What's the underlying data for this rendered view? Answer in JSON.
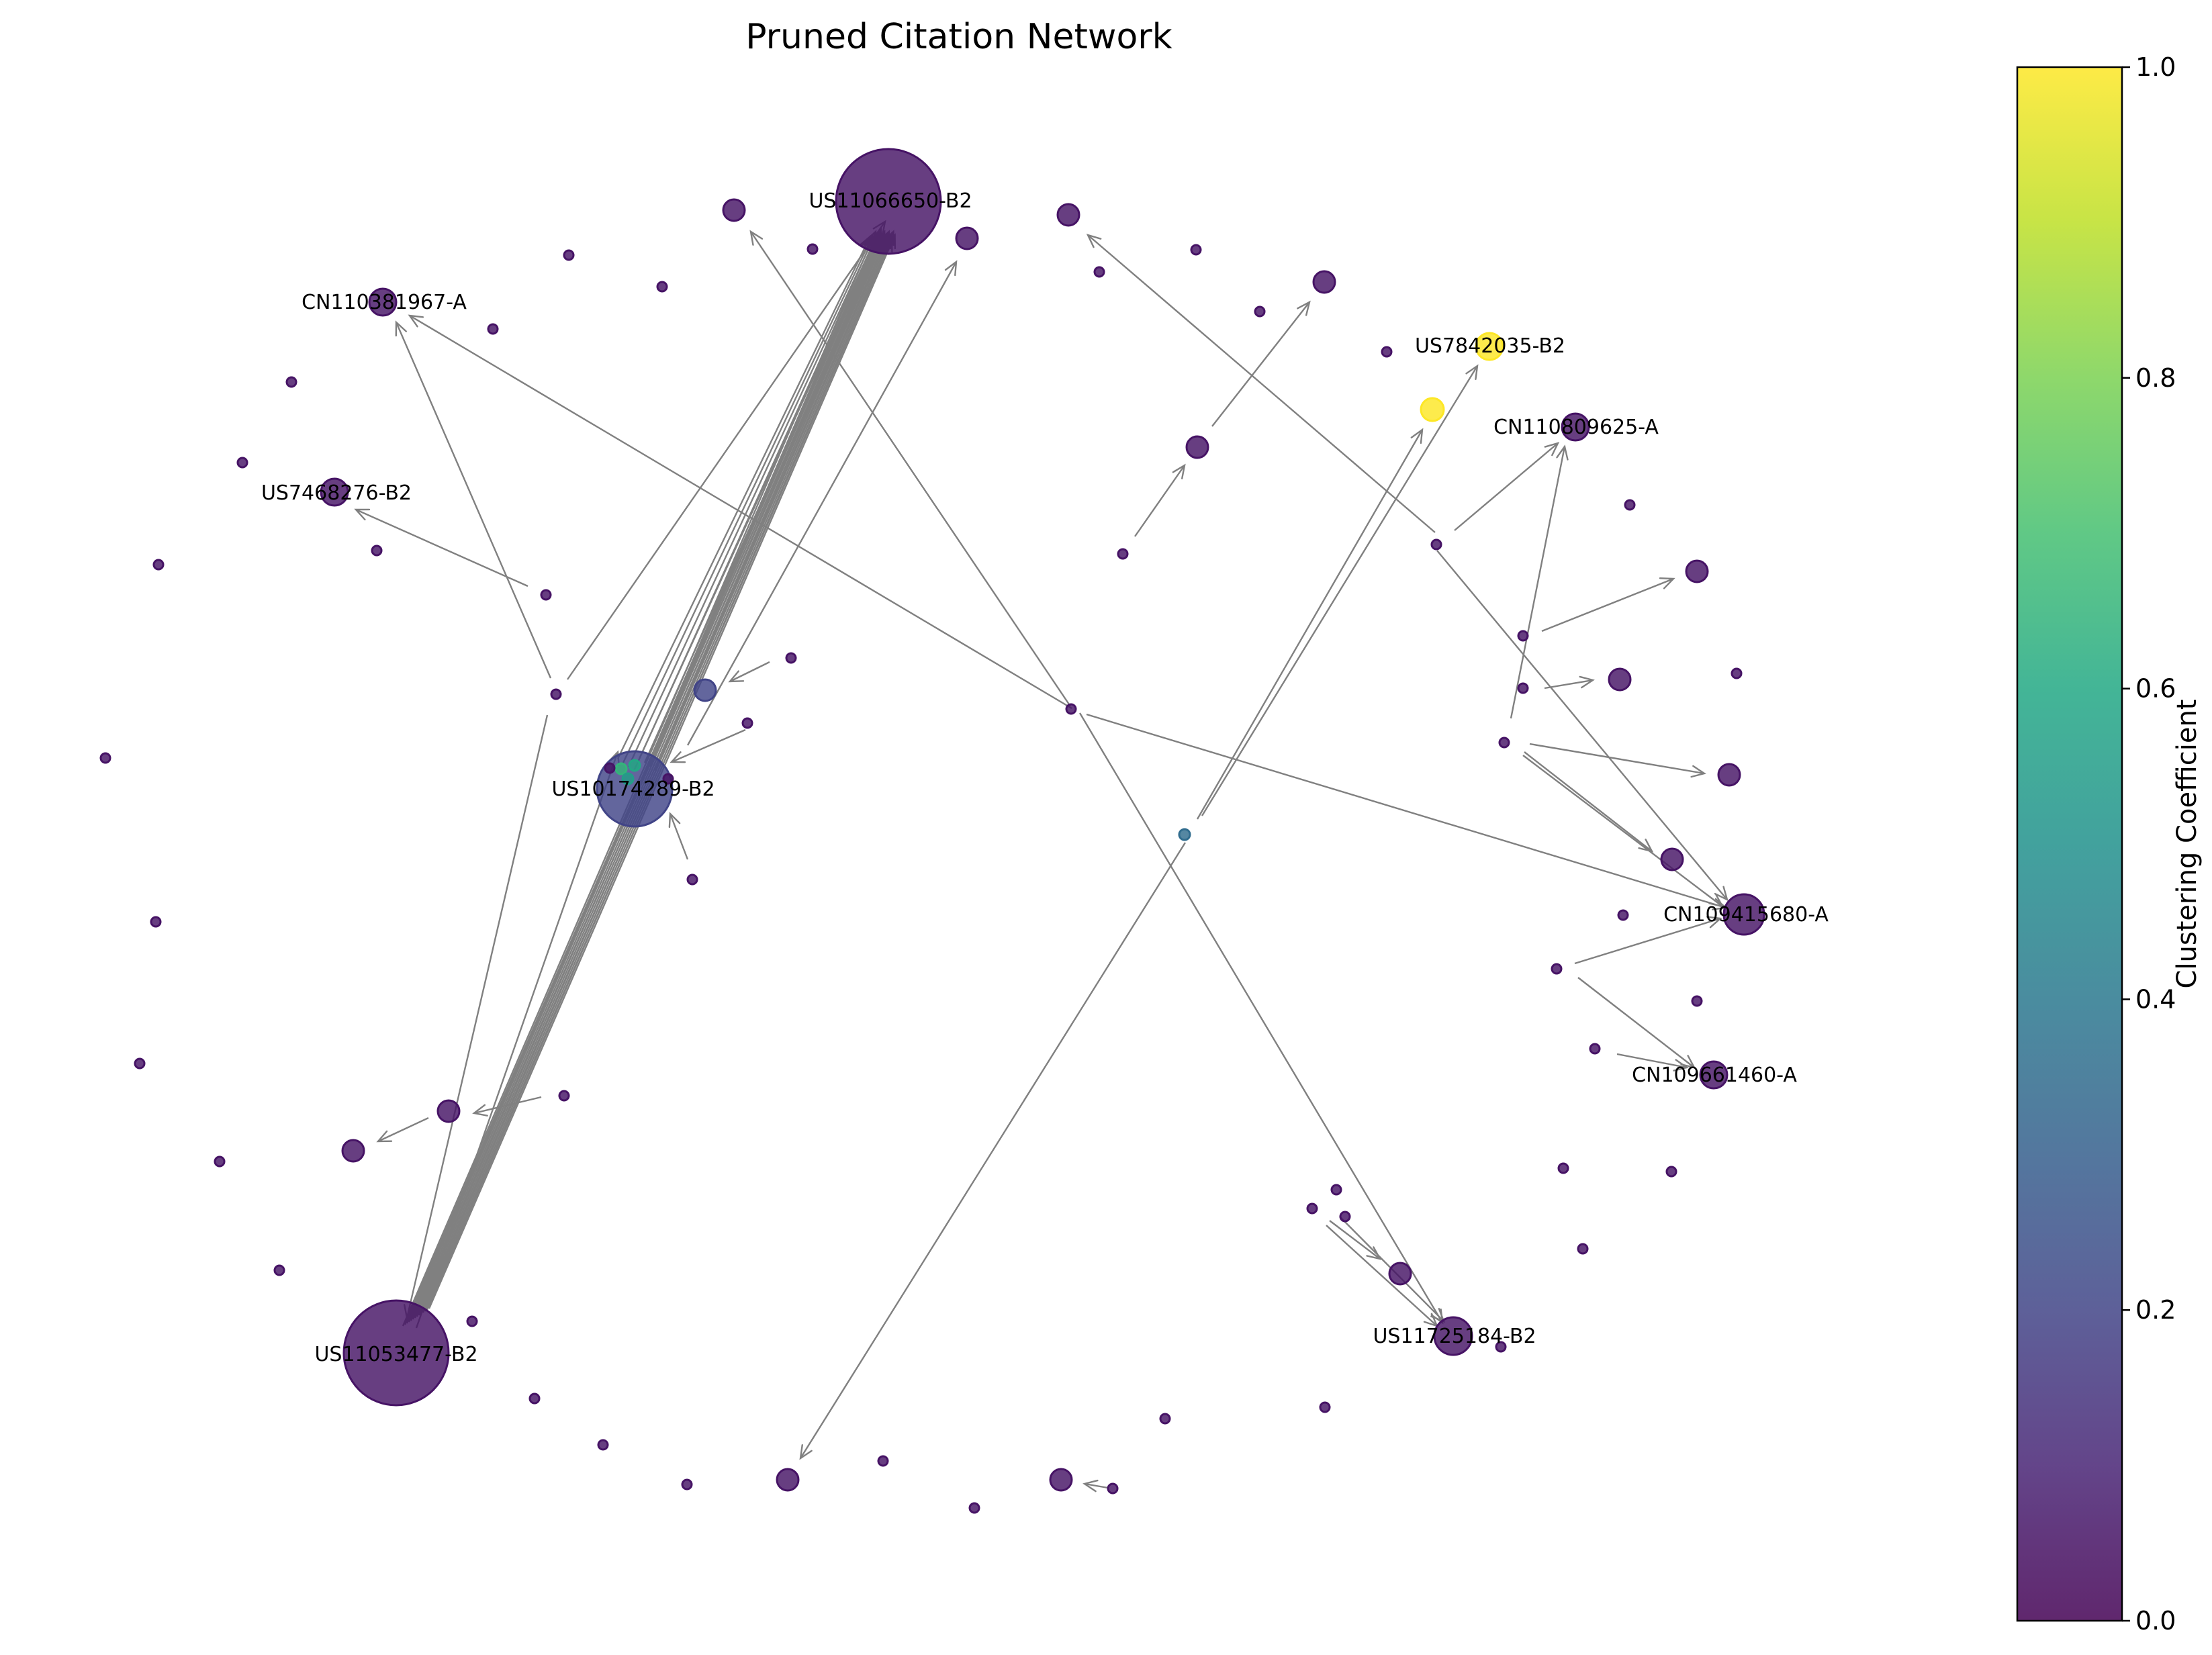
{
  "title": "Pruned Citation Network",
  "colorbar": {
    "label": "Clustering Coefficient",
    "range": [
      0,
      1
    ],
    "ticks": [
      "0.0",
      "0.2",
      "0.4",
      "0.6",
      "0.8",
      "1.0"
    ],
    "colormap": "viridis"
  },
  "edge_color": "#808080",
  "labeled_nodes": [
    "US11066650-B2",
    "CN110381967-A",
    "US7842035-B2",
    "CN110809625-A",
    "US7468276-B2",
    "US10174289-B2",
    "CN109415680-A",
    "CN109661460-A",
    "US11053477-B2",
    "US11725184-B2"
  ]
}
